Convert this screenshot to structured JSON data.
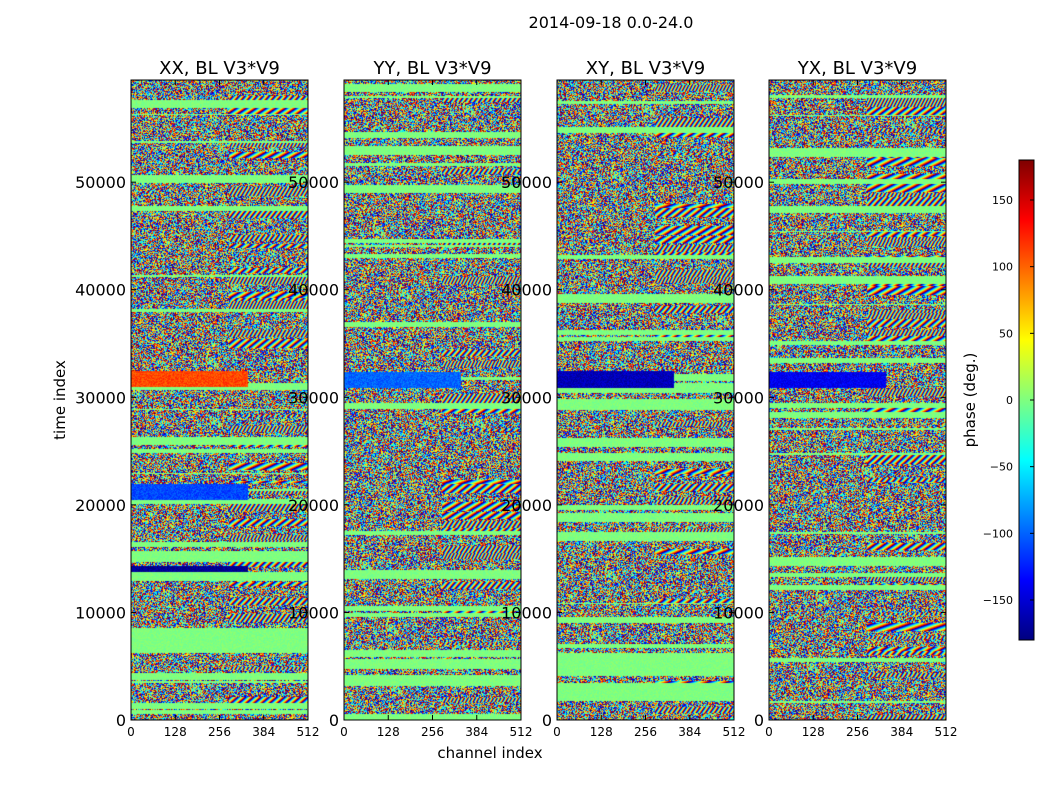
{
  "chart_data": {
    "type": "heatmap",
    "suptitle": "2014-09-18 0.0-24.0",
    "xlabel": "channel index",
    "ylabel": "time index",
    "xlim": [
      0,
      512
    ],
    "ylim": [
      0,
      59500
    ],
    "x_ticks": [
      "0",
      "128",
      "256",
      "384",
      "512"
    ],
    "y_ticks": [
      "0",
      "10000",
      "20000",
      "30000",
      "40000",
      "50000"
    ],
    "x_tick_values": [
      0,
      128,
      256,
      384,
      512
    ],
    "y_tick_values": [
      0,
      10000,
      20000,
      30000,
      40000,
      50000
    ],
    "panels": [
      {
        "title": "XX, BL V3*V9",
        "polarization": "XX",
        "baseline": "V3*V9"
      },
      {
        "title": "YY, BL V3*V9",
        "polarization": "YY",
        "baseline": "V3*V9"
      },
      {
        "title": "XY, BL V3*V9",
        "polarization": "XY",
        "baseline": "V3*V9"
      },
      {
        "title": "YX, BL V3*V9",
        "polarization": "YX",
        "baseline": "V3*V9"
      }
    ],
    "colorbar": {
      "label": "phase (deg.)",
      "range": [
        -180,
        180
      ],
      "ticks": [
        "150",
        "100",
        "50",
        "0",
        "−50",
        "−100",
        "−150"
      ],
      "tick_values": [
        150,
        100,
        50,
        0,
        -50,
        -100,
        -150
      ],
      "colormap": "jet",
      "colormap_stops": [
        "#00007f",
        "#0000ff",
        "#007fff",
        "#00ffff",
        "#7fff7f",
        "#ffff00",
        "#ff7f00",
        "#ff0000",
        "#7f0000"
      ]
    },
    "coherent_bands": [
      {
        "panel": "XX",
        "time_range": [
          31000,
          32500
        ],
        "phase": 110
      },
      {
        "panel": "XX",
        "time_range": [
          20500,
          22000
        ],
        "phase": -110
      },
      {
        "panel": "XX",
        "time_range": [
          13800,
          14400
        ],
        "phase": -175
      },
      {
        "panel": "YY",
        "time_range": [
          30900,
          32400
        ],
        "phase": -100
      },
      {
        "panel": "XY",
        "time_range": [
          30900,
          32500
        ],
        "phase": -160
      },
      {
        "panel": "YX",
        "time_range": [
          30900,
          32400
        ],
        "phase": -140
      }
    ]
  }
}
